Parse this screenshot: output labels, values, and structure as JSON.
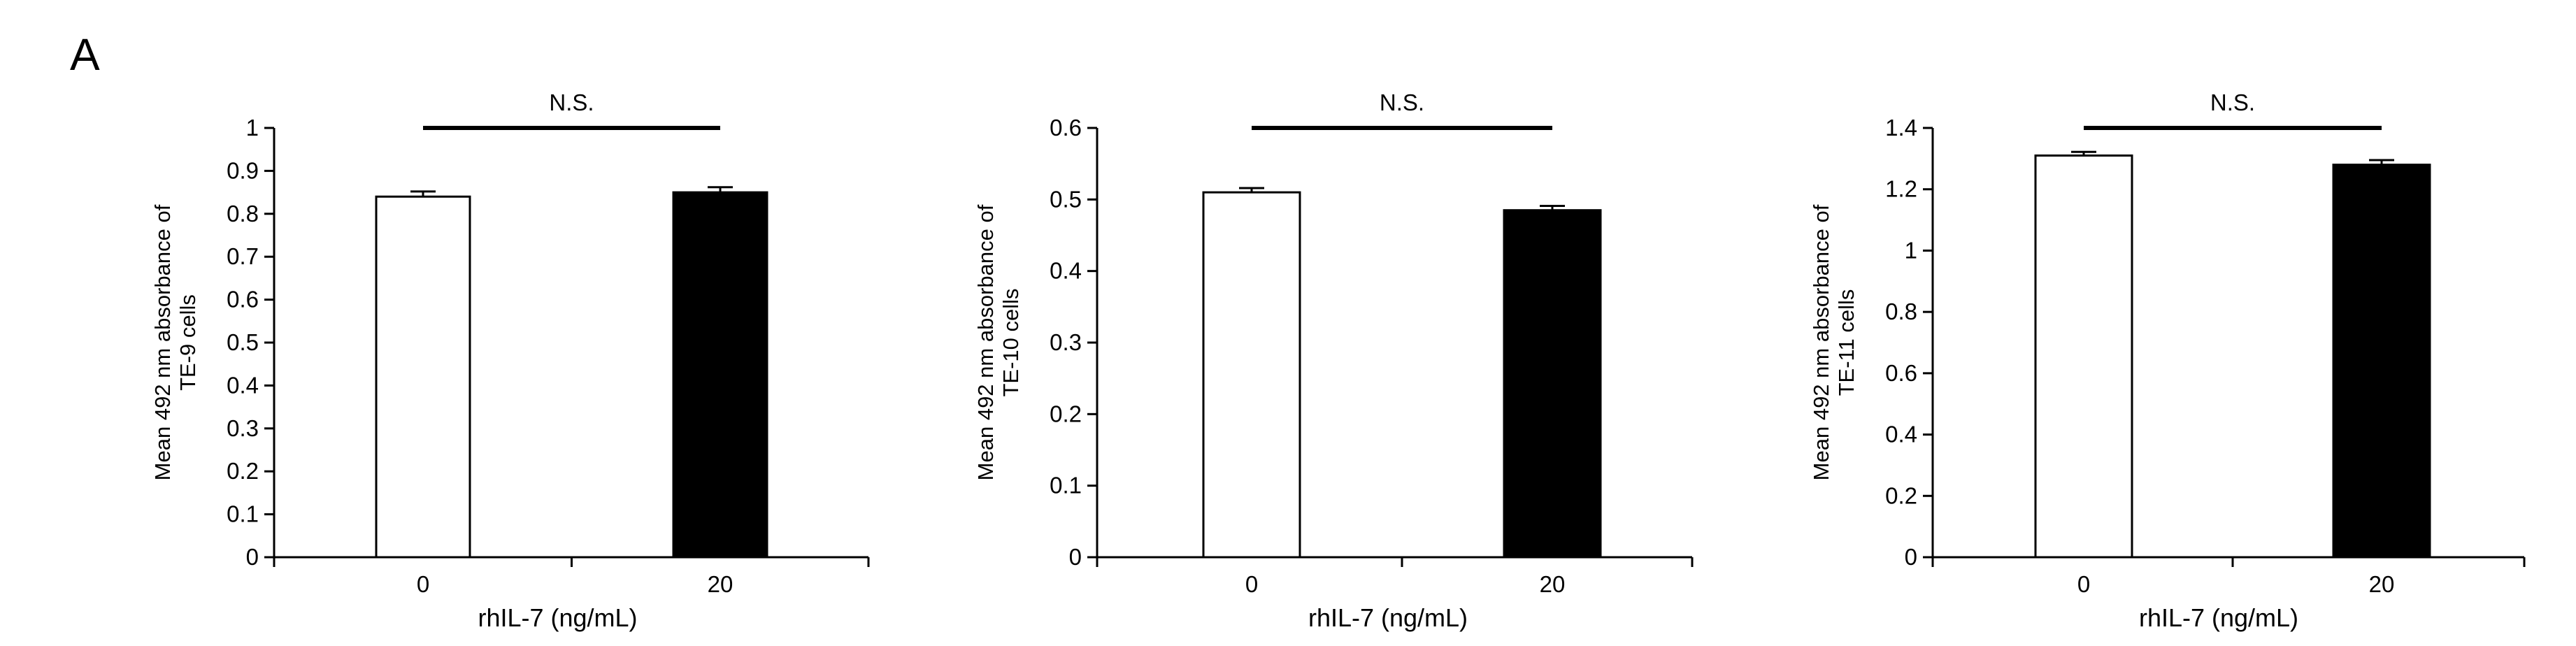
{
  "panel_label": "A",
  "chart_data": [
    {
      "type": "bar",
      "categories": [
        "0",
        "20"
      ],
      "values": [
        0.84,
        0.85
      ],
      "errors": [
        0.012,
        0.012
      ],
      "bar_colors": [
        "#ffffff",
        "#000000"
      ],
      "ylim": [
        0,
        1
      ],
      "yticks": [
        "0",
        "0.1",
        "0.2",
        "0.3",
        "0.4",
        "0.5",
        "0.6",
        "0.7",
        "0.8",
        "0.9",
        "1"
      ],
      "xlabel": "rhIL-7 (ng/mL)",
      "ylabel_lines": [
        "Mean 492 nm absorbance  of",
        "TE-9 cells"
      ],
      "significance": "N.S."
    },
    {
      "type": "bar",
      "categories": [
        "0",
        "20"
      ],
      "values": [
        0.51,
        0.485
      ],
      "errors": [
        0.006,
        0.006
      ],
      "bar_colors": [
        "#ffffff",
        "#000000"
      ],
      "ylim": [
        0,
        0.6
      ],
      "yticks": [
        "0",
        "0.1",
        "0.2",
        "0.3",
        "0.4",
        "0.5",
        "0.6"
      ],
      "xlabel": "rhIL-7 (ng/mL)",
      "ylabel_lines": [
        "Mean 492 nm absorbance of",
        "TE-10 cells"
      ],
      "significance": "N.S."
    },
    {
      "type": "bar",
      "categories": [
        "0",
        "20"
      ],
      "values": [
        1.31,
        1.28
      ],
      "errors": [
        0.012,
        0.015
      ],
      "bar_colors": [
        "#ffffff",
        "#000000"
      ],
      "ylim": [
        0,
        1.4
      ],
      "yticks": [
        "0",
        "0.2",
        "0.4",
        "0.6",
        "0.8",
        "1",
        "1.2",
        "1.4"
      ],
      "xlabel": "rhIL-7 (ng/mL)",
      "ylabel_lines": [
        "Mean 492 nm absorbance of",
        "TE-11 cells"
      ],
      "significance": "N.S."
    }
  ]
}
